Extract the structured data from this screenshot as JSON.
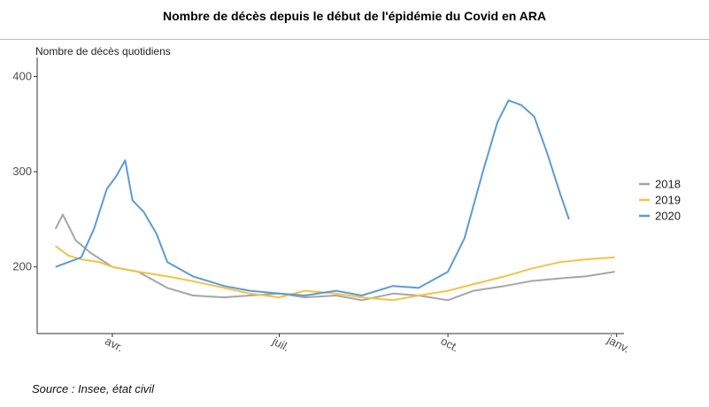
{
  "chart_data": {
    "type": "line",
    "title": "Nombre de décès depuis le début de l'épidémie du Covid en ARA",
    "ylabel": "Nombre de décès quotidiens",
    "xlabel": "",
    "source": "Source : Insee, état civil",
    "ylim": [
      130,
      420
    ],
    "xlim": [
      "2020-02-20",
      "2021-01-05"
    ],
    "y_ticks": [
      200,
      300,
      400
    ],
    "x_ticks": [
      {
        "date": "2020-04-01",
        "label": "avr."
      },
      {
        "date": "2020-07-01",
        "label": "juil."
      },
      {
        "date": "2020-10-01",
        "label": "oct."
      },
      {
        "date": "2021-01-01",
        "label": "janv."
      }
    ],
    "grid": false,
    "legend_position": "right",
    "series": [
      {
        "name": "2018",
        "color": "#a6a6a6",
        "x": [
          "2020-03-01",
          "2020-03-05",
          "2020-03-12",
          "2020-03-20",
          "2020-04-01",
          "2020-04-15",
          "2020-05-01",
          "2020-05-15",
          "2020-06-01",
          "2020-06-15",
          "2020-07-01",
          "2020-07-15",
          "2020-08-01",
          "2020-08-15",
          "2020-09-01",
          "2020-09-15",
          "2020-10-01",
          "2020-10-15",
          "2020-11-01",
          "2020-11-15",
          "2020-12-01",
          "2020-12-15",
          "2020-12-31"
        ],
        "values": [
          240,
          255,
          228,
          215,
          200,
          195,
          178,
          170,
          168,
          170,
          172,
          168,
          170,
          165,
          172,
          170,
          165,
          175,
          180,
          185,
          188,
          190,
          195
        ]
      },
      {
        "name": "2019",
        "color": "#f5c242",
        "x": [
          "2020-03-01",
          "2020-03-08",
          "2020-03-15",
          "2020-03-25",
          "2020-04-01",
          "2020-04-15",
          "2020-05-01",
          "2020-05-15",
          "2020-06-01",
          "2020-06-15",
          "2020-07-01",
          "2020-07-15",
          "2020-08-01",
          "2020-08-15",
          "2020-09-01",
          "2020-09-15",
          "2020-10-01",
          "2020-10-15",
          "2020-11-01",
          "2020-11-15",
          "2020-12-01",
          "2020-12-15",
          "2020-12-31"
        ],
        "values": [
          222,
          212,
          208,
          205,
          200,
          195,
          190,
          185,
          178,
          172,
          168,
          175,
          172,
          168,
          165,
          170,
          175,
          182,
          190,
          198,
          205,
          208,
          210
        ]
      },
      {
        "name": "2020",
        "color": "#5b9bd5",
        "x": [
          "2020-03-01",
          "2020-03-08",
          "2020-03-15",
          "2020-03-22",
          "2020-03-29",
          "2020-04-03",
          "2020-04-08",
          "2020-04-12",
          "2020-04-18",
          "2020-04-25",
          "2020-05-01",
          "2020-05-15",
          "2020-06-01",
          "2020-06-15",
          "2020-07-01",
          "2020-07-15",
          "2020-08-01",
          "2020-08-15",
          "2020-09-01",
          "2020-09-15",
          "2020-10-01",
          "2020-10-10",
          "2020-10-20",
          "2020-10-28",
          "2020-11-03",
          "2020-11-10",
          "2020-11-17",
          "2020-11-24",
          "2020-12-01",
          "2020-12-06"
        ],
        "values": [
          200,
          205,
          210,
          240,
          282,
          295,
          312,
          270,
          258,
          235,
          205,
          190,
          180,
          175,
          172,
          170,
          175,
          170,
          180,
          178,
          195,
          230,
          300,
          352,
          375,
          370,
          358,
          320,
          278,
          250
        ]
      }
    ]
  }
}
